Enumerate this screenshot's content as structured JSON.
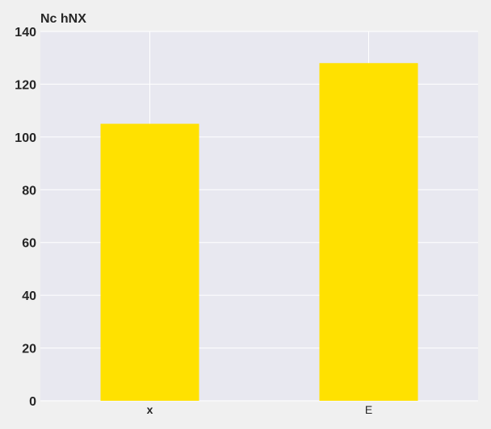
{
  "chart_data": {
    "type": "bar",
    "ylabel": "Nc hNX",
    "xlabel": "",
    "categories": [
      "x",
      "E"
    ],
    "values": [
      105,
      128
    ],
    "ylim": [
      0,
      140
    ],
    "yticks": [
      0,
      20,
      40,
      60,
      80,
      100,
      120,
      140
    ],
    "grid": true,
    "legend": "none"
  },
  "colors": {
    "bar": "#ffe100",
    "plot_background": "#e8e8f0",
    "page_background": "#f0f0f0",
    "grid": "#ffffff",
    "text": "#262626"
  }
}
